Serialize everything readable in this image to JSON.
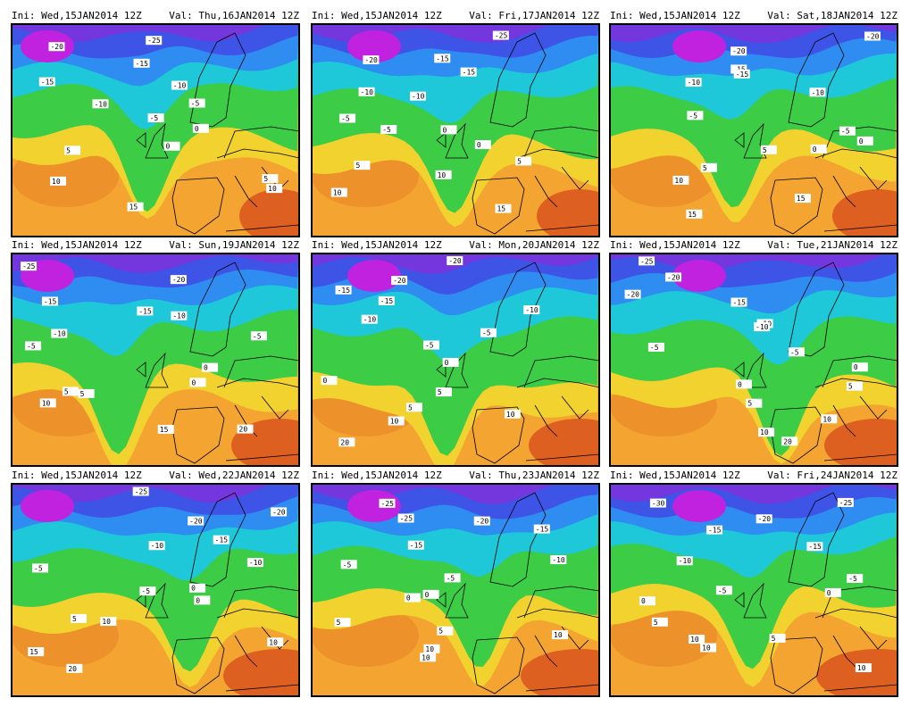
{
  "panels": [
    {
      "init": "Ini: Wed,15JAN2014 12Z",
      "valid": "Val: Thu,16JAN2014 12Z",
      "labels": [
        "-25",
        "-20",
        "-15",
        "-15",
        "-10",
        "-10",
        "-5",
        "-5",
        "0",
        "0",
        "5",
        "5",
        "10",
        "10",
        "15"
      ]
    },
    {
      "init": "Ini: Wed,15JAN2014 12Z",
      "valid": "Val: Fri,17JAN2014 12Z",
      "labels": [
        "-25",
        "-20",
        "-15",
        "-15",
        "-10",
        "-10",
        "-5",
        "-5",
        "0",
        "0",
        "5",
        "5",
        "10",
        "10",
        "15"
      ]
    },
    {
      "init": "Ini: Wed,15JAN2014 12Z",
      "valid": "Val: Sat,18JAN2014 12Z",
      "labels": [
        "-20",
        "-20",
        "-15",
        "-15",
        "-10",
        "-10",
        "-5",
        "-5",
        "0",
        "0",
        "5",
        "5",
        "10",
        "15",
        "15"
      ]
    },
    {
      "init": "Ini: Wed,15JAN2014 12Z",
      "valid": "Val: Sun,19JAN2014 12Z",
      "labels": [
        "-25",
        "-20",
        "-15",
        "-15",
        "-10",
        "-10",
        "-5",
        "-5",
        "0",
        "0",
        "5",
        "5",
        "10",
        "15",
        "20"
      ]
    },
    {
      "init": "Ini: Wed,15JAN2014 12Z",
      "valid": "Val: Mon,20JAN2014 12Z",
      "labels": [
        "-20",
        "-20",
        "-15",
        "-15",
        "-10",
        "-10",
        "-5",
        "-5",
        "0",
        "0",
        "5",
        "5",
        "10",
        "10",
        "20"
      ]
    },
    {
      "init": "Ini: Wed,15JAN2014 12Z",
      "valid": "Val: Tue,21JAN2014 12Z",
      "labels": [
        "-25",
        "-20",
        "-20",
        "-15",
        "-10",
        "-10",
        "-5",
        "-5",
        "0",
        "0",
        "5",
        "5",
        "10",
        "10",
        "20"
      ]
    },
    {
      "init": "Ini: Wed,15JAN2014 12Z",
      "valid": "Val: Wed,22JAN2014 12Z",
      "labels": [
        "-25",
        "-20",
        "-20",
        "-15",
        "-10",
        "-10",
        "-5",
        "-5",
        "0",
        "0",
        "5",
        "10",
        "10",
        "15",
        "20"
      ]
    },
    {
      "init": "Ini: Wed,15JAN2014 12Z",
      "valid": "Val: Thu,23JAN2014 12Z",
      "labels": [
        "-25",
        "-25",
        "-20",
        "-15",
        "-15",
        "-10",
        "-5",
        "-5",
        "0",
        "0",
        "5",
        "5",
        "10",
        "10",
        "10"
      ]
    },
    {
      "init": "Ini: Wed,15JAN2014 12Z",
      "valid": "Val: Fri,24JAN2014 12Z",
      "labels": [
        "-30",
        "-25",
        "-20",
        "-15",
        "-15",
        "-10",
        "-5",
        "-5",
        "0",
        "0",
        "5",
        "5",
        "10",
        "10",
        "10"
      ]
    }
  ]
}
